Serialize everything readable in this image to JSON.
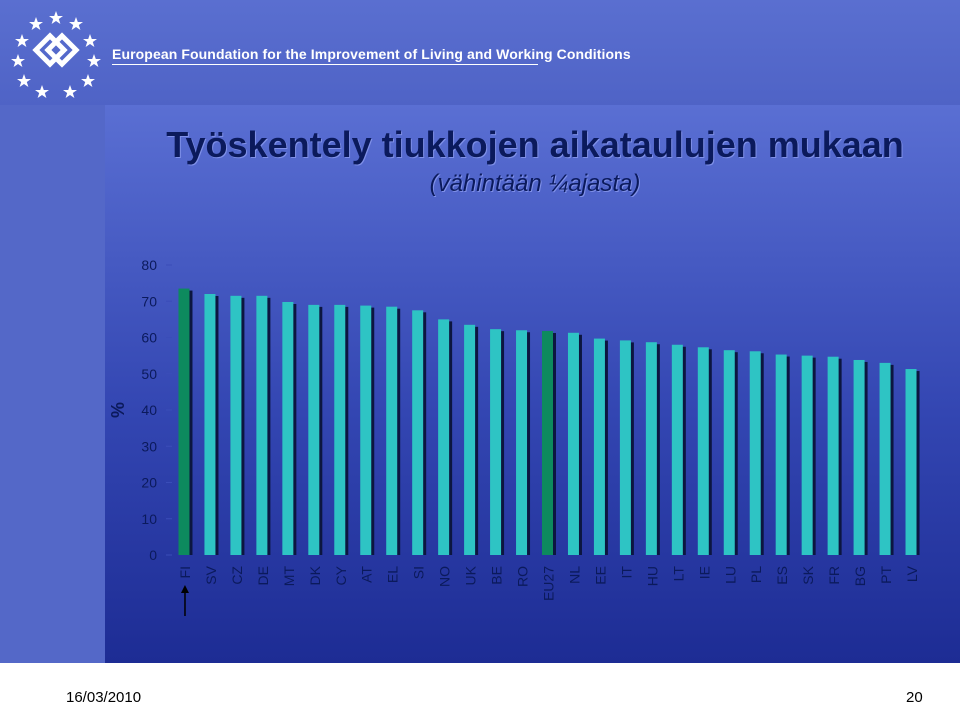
{
  "header": {
    "org_name": "European Foundation for the Improvement of Living and Working Conditions"
  },
  "slide": {
    "title": "Työskentely tiukkojen aikataulujen mukaan",
    "subtitle": "(vähintään ¼ajasta)",
    "date": "16/03/2010",
    "page_number": "20"
  },
  "colors": {
    "bar": "#2ec4c4",
    "bar_shadow": "#0c1640",
    "highlight_bar": "#0d8a5e",
    "axis_text": "#0b1a5c"
  },
  "chart_data": {
    "type": "bar",
    "title": "Työskentely tiukkojen aikataulujen mukaan",
    "subtitle": "(vähintään ¼ajasta)",
    "ylabel": "%",
    "xlabel": "",
    "ylim": [
      0,
      80
    ],
    "yticks": [
      0,
      10,
      20,
      30,
      40,
      50,
      60,
      70,
      80
    ],
    "grid": false,
    "categories": [
      "FI",
      "SV",
      "CZ",
      "DE",
      "MT",
      "DK",
      "CY",
      "AT",
      "EL",
      "SI",
      "NO",
      "UK",
      "BE",
      "RO",
      "EU27",
      "NL",
      "EE",
      "IT",
      "HU",
      "LT",
      "IE",
      "LU",
      "PL",
      "ES",
      "SK",
      "FR",
      "BG",
      "PT",
      "LV"
    ],
    "values": [
      73.5,
      72,
      71.5,
      71.5,
      69.8,
      69,
      69,
      68.8,
      68.5,
      67.5,
      65,
      63.5,
      62.3,
      62,
      61.8,
      61.3,
      59.7,
      59.2,
      58.7,
      58,
      57.3,
      56.5,
      56.2,
      55.3,
      55,
      54.7,
      53.8,
      53,
      51.3
    ],
    "highlighted": [
      "FI",
      "EU27"
    ],
    "arrow_marker": "FI"
  }
}
